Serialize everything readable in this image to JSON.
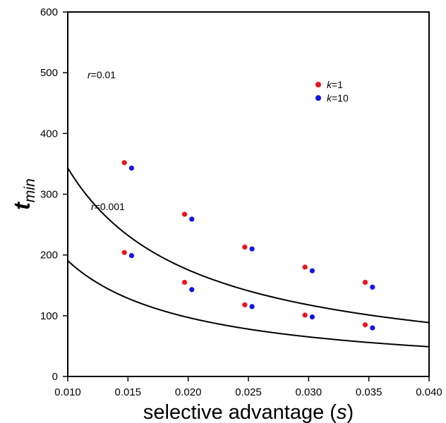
{
  "chart_data": {
    "type": "scatter",
    "xlabel_main": "selective advantage (",
    "xlabel_var": "s",
    "xlabel_close": ")",
    "ylabel_main": "t",
    "ylabel_sub": "min",
    "xlim": [
      0.01,
      0.04
    ],
    "ylim": [
      0,
      600
    ],
    "xticks": [
      "0.010",
      "0.015",
      "0.020",
      "0.025",
      "0.030",
      "0.035",
      "0.040"
    ],
    "yticks": [
      "0",
      "100",
      "200",
      "300",
      "400",
      "500",
      "600"
    ],
    "grid": false,
    "legend_position": "top-right",
    "annotations": [
      {
        "var": "r",
        "value": "=0.01"
      },
      {
        "var": "r",
        "value": "=0.001"
      }
    ],
    "series": [
      {
        "name_var": "k",
        "name_value": "=1",
        "color": "#e8141c",
        "points": [
          {
            "x": 0.0147,
            "y": 352
          },
          {
            "x": 0.0197,
            "y": 267
          },
          {
            "x": 0.0247,
            "y": 213
          },
          {
            "x": 0.0297,
            "y": 180
          },
          {
            "x": 0.0347,
            "y": 155
          },
          {
            "x": 0.0147,
            "y": 204
          },
          {
            "x": 0.0197,
            "y": 155
          },
          {
            "x": 0.0247,
            "y": 118
          },
          {
            "x": 0.0297,
            "y": 101
          },
          {
            "x": 0.0347,
            "y": 85
          }
        ]
      },
      {
        "name_var": "k",
        "name_value": "=10",
        "color": "#1414e0",
        "points": [
          {
            "x": 0.0153,
            "y": 343
          },
          {
            "x": 0.0203,
            "y": 259
          },
          {
            "x": 0.0253,
            "y": 210
          },
          {
            "x": 0.0303,
            "y": 174
          },
          {
            "x": 0.0353,
            "y": 147
          },
          {
            "x": 0.0153,
            "y": 199
          },
          {
            "x": 0.0203,
            "y": 143
          },
          {
            "x": 0.0253,
            "y": 115
          },
          {
            "x": 0.0303,
            "y": 98
          },
          {
            "x": 0.0353,
            "y": 80
          }
        ]
      }
    ],
    "fit_curves": [
      {
        "a": 3.59,
        "b": 0.00046,
        "color": "#000000"
      },
      {
        "a": 1.98,
        "b": 0.00039,
        "color": "#000000"
      }
    ]
  }
}
